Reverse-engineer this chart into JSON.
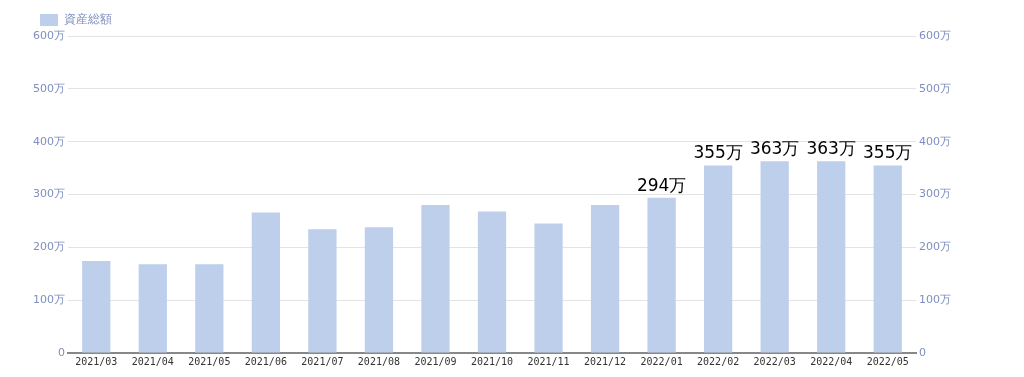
{
  "chart_data": {
    "type": "bar",
    "categories": [
      "2021/03",
      "2021/04",
      "2021/05",
      "2021/06",
      "2021/07",
      "2021/08",
      "2021/09",
      "2021/10",
      "2021/11",
      "2021/12",
      "2022/01",
      "2022/02",
      "2022/03",
      "2022/04",
      "2022/05"
    ],
    "series": [
      {
        "name": "資産総額",
        "color": "#bdcfeb",
        "values": [
          174,
          168,
          168,
          266,
          234,
          238,
          280,
          268,
          245,
          280,
          294,
          355,
          363,
          363,
          355
        ],
        "value_labels": [
          null,
          null,
          null,
          null,
          null,
          null,
          null,
          null,
          null,
          null,
          "294万",
          "355万",
          "363万",
          "363万",
          "355万"
        ]
      }
    ],
    "ylim": [
      0,
      600
    ],
    "yticks": [
      0,
      {
        "value": 100,
        "label": "100万"
      },
      {
        "value": 200,
        "label": "200万"
      },
      {
        "value": 300,
        "label": "300万"
      },
      {
        "value": 400,
        "label": "400万"
      },
      {
        "value": 500,
        "label": "500万"
      },
      {
        "value": 600,
        "label": "600万"
      }
    ],
    "y2lim": [
      0,
      600
    ],
    "y2ticks": [
      0,
      {
        "value": 100,
        "label": "100万"
      },
      {
        "value": 200,
        "label": "200万"
      },
      {
        "value": 300,
        "label": "300万"
      },
      {
        "value": 400,
        "label": "400万"
      },
      {
        "value": 500,
        "label": "500万"
      },
      {
        "value": 600,
        "label": "600万"
      }
    ],
    "grid": "y",
    "legend": "top left"
  }
}
